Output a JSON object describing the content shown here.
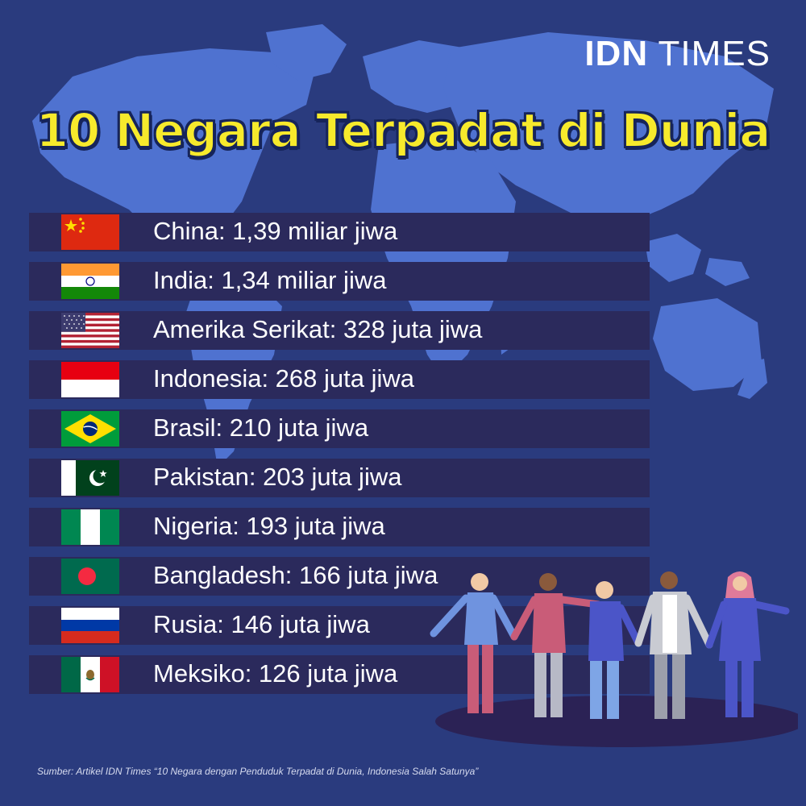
{
  "logo": {
    "bold_part": "IDN",
    "light_part": "TIMES"
  },
  "title": "10 Negara Terpadat di Dunia",
  "countries": [
    {
      "label": "China: 1,39 miliar jiwa",
      "flag": "china-flag-icon"
    },
    {
      "label": "India: 1,34 miliar jiwa",
      "flag": "india-flag-icon"
    },
    {
      "label": "Amerika Serikat: 328 juta jiwa",
      "flag": "usa-flag-icon"
    },
    {
      "label": "Indonesia: 268 juta jiwa",
      "flag": "indonesia-flag-icon"
    },
    {
      "label": "Brasil: 210 juta jiwa",
      "flag": "brazil-flag-icon"
    },
    {
      "label": "Pakistan: 203 juta jiwa",
      "flag": "pakistan-flag-icon"
    },
    {
      "label": "Nigeria: 193 juta jiwa",
      "flag": "nigeria-flag-icon"
    },
    {
      "label": "Bangladesh: 166 juta jiwa",
      "flag": "bangladesh-flag-icon"
    },
    {
      "label": "Rusia: 146 juta jiwa",
      "flag": "russia-flag-icon"
    },
    {
      "label": "Meksiko: 126 juta jiwa",
      "flag": "mexico-flag-icon"
    }
  ],
  "source": "Sumber: Artikel IDN Times “10 Negara dengan Penduduk Terpadat di Dunia, Indonesia Salah Satunya”",
  "colors": {
    "background": "#2a3b7e",
    "map": "#4f72d0",
    "row": "#2b2a5c",
    "title": "#f7ea2c"
  }
}
